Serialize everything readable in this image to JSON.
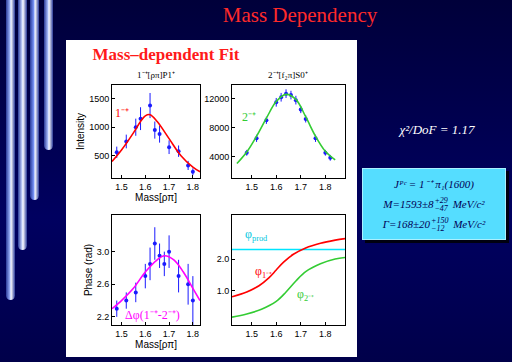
{
  "slide": {
    "title": "Mass Dependency",
    "panel_title": "Mass–dependent Fit",
    "fit_quality": "χ²/DoF = 1.17",
    "result_box": [
      {
        "text": "Jᴾᶜ = 1⁻⁺ π₁(1600)"
      },
      {
        "text": "M=1593±8",
        "sup": "+29",
        "sub": "−47",
        "unit": "MeV/c²"
      },
      {
        "text": "Γ=168±20",
        "sup": "+150",
        "sub": "−12",
        "unit": "MeV/c²"
      }
    ]
  },
  "chart_data": [
    {
      "type": "scatter",
      "title": "1⁻⁺[ρπ]P1⁺",
      "x_label": "Mass[ρπ]",
      "y_label": "Intensity",
      "xlim": [
        1.46,
        1.83
      ],
      "xticks": [
        1.5,
        1.6,
        1.7,
        1.8
      ],
      "ylim": [
        110,
        1740
      ],
      "yticks": [
        500,
        1000,
        1500
      ],
      "series": [
        {
          "type": "scatter",
          "marker": "circle",
          "color": "#1a1aff",
          "x": [
            1.48,
            1.52,
            1.56,
            1.58,
            1.62,
            1.64,
            1.66,
            1.7,
            1.74,
            1.78,
            1.8
          ],
          "values": [
            560,
            750,
            1000,
            1150,
            1380,
            950,
            880,
            650,
            580,
            330,
            220
          ],
          "errors": [
            100,
            120,
            150,
            200,
            220,
            150,
            150,
            120,
            100,
            80,
            60
          ]
        },
        {
          "type": "line",
          "line_style": "solid",
          "color": "#ff0000",
          "x": [
            1.46,
            1.5,
            1.55,
            1.58,
            1.6,
            1.62,
            1.65,
            1.7,
            1.75,
            1.8,
            1.83
          ],
          "values": [
            400,
            600,
            900,
            1100,
            1200,
            1220,
            1100,
            800,
            500,
            300,
            220
          ]
        }
      ],
      "annotations": [
        {
          "text": "1⁻⁺",
          "x": 1.5,
          "y": 1250,
          "color": "#ff0000"
        }
      ]
    },
    {
      "type": "scatter",
      "title": "2⁻⁺[f₂π]S0⁺",
      "xlim": [
        1.42,
        1.88
      ],
      "xticks": [
        1.5,
        1.6,
        1.7,
        1.8
      ],
      "ylim": [
        1000,
        13900
      ],
      "yticks": [
        4000,
        8000,
        12000
      ],
      "series": [
        {
          "type": "scatter",
          "marker": "circle",
          "color": "#1a1aff",
          "x": [
            1.48,
            1.52,
            1.56,
            1.6,
            1.62,
            1.64,
            1.66,
            1.68,
            1.7,
            1.72,
            1.76,
            1.8,
            1.82
          ],
          "values": [
            4500,
            6500,
            9000,
            11500,
            12200,
            12700,
            12500,
            11800,
            10500,
            9200,
            6500,
            4500,
            3800
          ],
          "errors": [
            400,
            500,
            500,
            600,
            600,
            600,
            600,
            600,
            500,
            500,
            500,
            400,
            400
          ]
        },
        {
          "type": "line",
          "line_style": "solid",
          "color": "#33cc33",
          "x": [
            1.44,
            1.48,
            1.52,
            1.56,
            1.6,
            1.64,
            1.68,
            1.72,
            1.76,
            1.8,
            1.84
          ],
          "values": [
            3000,
            4600,
            6800,
            9300,
            11600,
            12600,
            11900,
            9500,
            6800,
            4700,
            3500
          ]
        }
      ],
      "annotations": [
        {
          "text": "2⁻⁺",
          "x": 1.49,
          "y": 9500,
          "color": "#33cc33"
        }
      ]
    },
    {
      "type": "scatter",
      "x_label": "Mass[ρπ]",
      "y_label": "Phase (rad)",
      "xlim": [
        1.46,
        1.83
      ],
      "xticks": [
        1.5,
        1.6,
        1.7,
        1.8
      ],
      "ylim": [
        2.1,
        3.45
      ],
      "yticks": [
        2.2,
        2.6,
        {
          "value": 3,
          "label": "3.0"
        }
      ],
      "series": [
        {
          "type": "scatter",
          "marker": "circle",
          "color": "#1a1aff",
          "x": [
            1.48,
            1.52,
            1.56,
            1.6,
            1.62,
            1.64,
            1.66,
            1.68,
            1.7,
            1.74,
            1.78,
            1.8
          ],
          "values": [
            2.3,
            2.4,
            2.5,
            2.7,
            2.85,
            3.1,
            2.95,
            2.85,
            3.0,
            2.7,
            2.6,
            2.4
          ],
          "errors": [
            0.1,
            0.1,
            0.12,
            0.15,
            0.2,
            0.2,
            0.15,
            0.15,
            0.2,
            0.2,
            0.25,
            0.3
          ]
        },
        {
          "type": "line",
          "line_style": "solid",
          "color": "#ff00ff",
          "x": [
            1.46,
            1.5,
            1.55,
            1.6,
            1.65,
            1.68,
            1.72,
            1.76,
            1.8,
            1.83
          ],
          "values": [
            2.3,
            2.4,
            2.55,
            2.75,
            2.9,
            2.95,
            2.9,
            2.75,
            2.55,
            2.4
          ]
        }
      ],
      "annotations": [
        {
          "text": "Δφ(1⁻⁺-2⁻⁺)",
          "x": 1.63,
          "y": 2.22,
          "color": "#ff00ff"
        }
      ]
    },
    {
      "type": "line",
      "xlim": [
        1.42,
        1.88
      ],
      "xticks": [
        1.5,
        1.6,
        1.7,
        1.8
      ],
      "ylim": [
        -0.1,
        3.4
      ],
      "yticks": [
        {
          "value": 1,
          "label": "1.0"
        },
        {
          "value": 2,
          "label": "2.0"
        }
      ],
      "series": [
        {
          "type": "line",
          "line_style": "solid",
          "color": "#00e5ff",
          "x": [
            1.42,
            1.88
          ],
          "values": [
            2.3,
            2.3
          ]
        },
        {
          "type": "line",
          "line_style": "solid",
          "color": "#ff0000",
          "x": [
            1.42,
            1.48,
            1.53,
            1.57,
            1.6,
            1.63,
            1.67,
            1.72,
            1.78,
            1.84,
            1.88
          ],
          "values": [
            0.8,
            0.95,
            1.15,
            1.4,
            1.65,
            1.9,
            2.15,
            2.35,
            2.5,
            2.6,
            2.65
          ]
        },
        {
          "type": "line",
          "line_style": "solid",
          "color": "#33cc33",
          "x": [
            1.42,
            1.48,
            1.54,
            1.6,
            1.64,
            1.68,
            1.72,
            1.78,
            1.84,
            1.88
          ],
          "values": [
            0.15,
            0.25,
            0.4,
            0.65,
            0.95,
            1.3,
            1.6,
            1.85,
            2.0,
            2.05
          ]
        }
      ],
      "annotations": [
        {
          "text": "φ",
          "sub": "prod",
          "x": 1.52,
          "y": 2.75,
          "color": "#00c8e0"
        },
        {
          "text": "φ",
          "sub": "1⁻⁺",
          "x": 1.55,
          "y": 1.6,
          "color": "#ff0000"
        },
        {
          "text": "φ",
          "sub": "2⁻⁺",
          "x": 1.72,
          "y": 0.85,
          "color": "#33cc33"
        }
      ]
    }
  ]
}
